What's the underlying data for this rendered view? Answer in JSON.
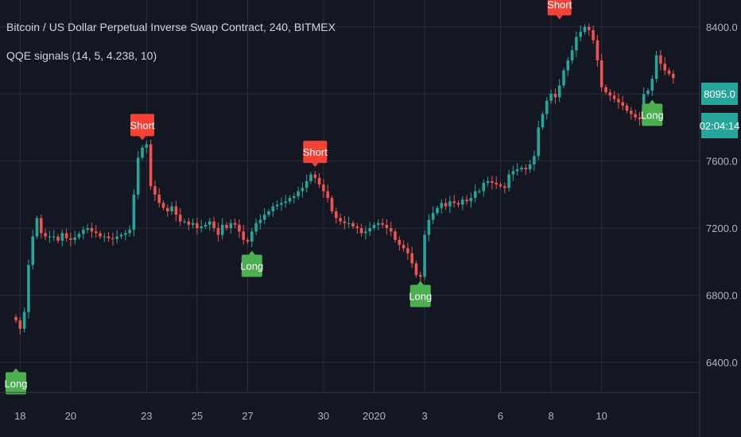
{
  "header": {
    "title": "Bitcoin / US Dollar Perpetual Inverse Swap Contract, 240, BITMEX",
    "indicator": "QQE signals (14, 5, 4.238, 10)"
  },
  "price_tags": {
    "last_price": "8095.0",
    "countdown": "02:04:14"
  },
  "colors": {
    "background": "#131722",
    "up": "#26a69a",
    "down": "#ef5350",
    "long": "#4caf50",
    "short": "#f44336",
    "grid": "#2a2e39",
    "axis_text": "#b2b5be"
  },
  "chart_data": {
    "type": "candlestick",
    "y_ticks": [
      "6400.0",
      "6800.0",
      "7200.0",
      "7600.0",
      "8000.0",
      "8400.0"
    ],
    "ylim": [
      6220,
      8560
    ],
    "x_tick_labels": [
      "18",
      "20",
      "23",
      "25",
      "27",
      "30",
      "2020",
      "3",
      "6",
      "8",
      "10"
    ],
    "x_tick_candle_index": [
      1,
      13,
      31,
      43,
      55,
      73,
      85,
      97,
      115,
      127,
      139
    ],
    "grid": true,
    "close": [
      6650,
      6600,
      6700,
      6980,
      7150,
      7260,
      7170,
      7150,
      7150,
      7150,
      7125,
      7170,
      7140,
      7130,
      7145,
      7165,
      7190,
      7200,
      7180,
      7170,
      7150,
      7150,
      7140,
      7135,
      7150,
      7160,
      7170,
      7190,
      7400,
      7620,
      7680,
      7700,
      7450,
      7400,
      7350,
      7320,
      7300,
      7330,
      7280,
      7240,
      7240,
      7220,
      7230,
      7200,
      7210,
      7220,
      7240,
      7200,
      7160,
      7220,
      7200,
      7230,
      7220,
      7180,
      7130,
      7120,
      7180,
      7230,
      7250,
      7280,
      7300,
      7330,
      7340,
      7350,
      7360,
      7380,
      7390,
      7420,
      7440,
      7480,
      7520,
      7500,
      7460,
      7420,
      7380,
      7300,
      7260,
      7240,
      7230,
      7230,
      7210,
      7200,
      7170,
      7180,
      7200,
      7220,
      7230,
      7220,
      7200,
      7180,
      7130,
      7100,
      7080,
      7050,
      6990,
      6920,
      6910,
      7160,
      7250,
      7290,
      7320,
      7350,
      7330,
      7360,
      7350,
      7340,
      7370,
      7360,
      7380,
      7420,
      7420,
      7470,
      7480,
      7470,
      7460,
      7450,
      7440,
      7520,
      7540,
      7550,
      7560,
      7550,
      7580,
      7630,
      7800,
      7880,
      7960,
      8000,
      7980,
      8050,
      8140,
      8200,
      8260,
      8340,
      8370,
      8400,
      8380,
      8320,
      8200,
      8040,
      8010,
      7990,
      7970,
      7950,
      7930,
      7900,
      7880,
      7860,
      7850,
      8000,
      8020,
      8090,
      8230,
      8180,
      8140,
      8120,
      8095
    ],
    "signals": [
      {
        "label": "Long",
        "candle_index": 0,
        "direction": "long",
        "price": 6370
      },
      {
        "label": "Short",
        "candle_index": 30,
        "direction": "short",
        "price": 7720
      },
      {
        "label": "Long",
        "candle_index": 56,
        "direction": "long",
        "price": 7070
      },
      {
        "label": "Short",
        "candle_index": 71,
        "direction": "short",
        "price": 7560
      },
      {
        "label": "Long",
        "candle_index": 96,
        "direction": "long",
        "price": 6890
      },
      {
        "label": "Short",
        "candle_index": 129,
        "direction": "short",
        "price": 8440
      },
      {
        "label": "Long",
        "candle_index": 151,
        "direction": "long",
        "price": 7970
      }
    ]
  }
}
